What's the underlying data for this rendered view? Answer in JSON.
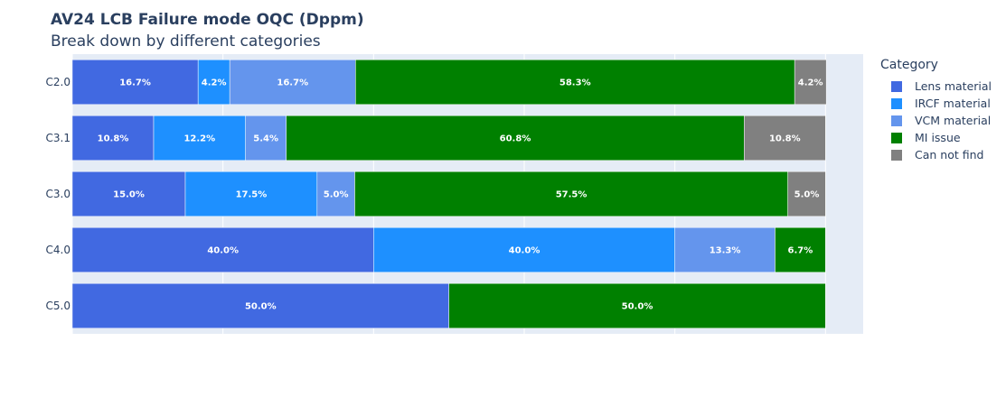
{
  "chart_data": {
    "type": "bar",
    "orientation": "horizontal",
    "barmode": "stack",
    "title": "AV24 LCB Failure mode OQC (Dppm)",
    "subtitle": "Break down by different categories",
    "legend_title": "Category",
    "legend_position": "right",
    "grid": true,
    "categories": [
      "C2.0",
      "C3.1",
      "C3.0",
      "C4.0",
      "C5.0"
    ],
    "xlim": [
      0,
      105
    ],
    "series": [
      {
        "name": "Lens material",
        "color": "#4169E1",
        "values": [
          16.7,
          10.8,
          15.0,
          40.0,
          50.0
        ],
        "labels": [
          "16.7%",
          "10.8%",
          "15.0%",
          "40.0%",
          "50.0%"
        ]
      },
      {
        "name": "IRCF material",
        "color": "#1E90FF",
        "values": [
          4.2,
          12.2,
          17.5,
          40.0,
          0
        ],
        "labels": [
          "4.2%",
          "12.2%",
          "17.5%",
          "40.0%",
          ""
        ]
      },
      {
        "name": "VCM material",
        "color": "#6495ED",
        "values": [
          16.7,
          5.4,
          5.0,
          13.3,
          0
        ],
        "labels": [
          "16.7%",
          "5.4%",
          "5.0%",
          "13.3%",
          ""
        ]
      },
      {
        "name": "MI issue",
        "color": "#008000",
        "values": [
          58.3,
          60.8,
          57.5,
          6.7,
          50.0
        ],
        "labels": [
          "58.3%",
          "60.8%",
          "57.5%",
          "6.7%",
          "50.0%"
        ]
      },
      {
        "name": "Can not find",
        "color": "#808080",
        "values": [
          4.2,
          10.8,
          5.0,
          0,
          0
        ],
        "labels": [
          "4.2%",
          "10.8%",
          "5.0%",
          "",
          ""
        ]
      }
    ]
  }
}
